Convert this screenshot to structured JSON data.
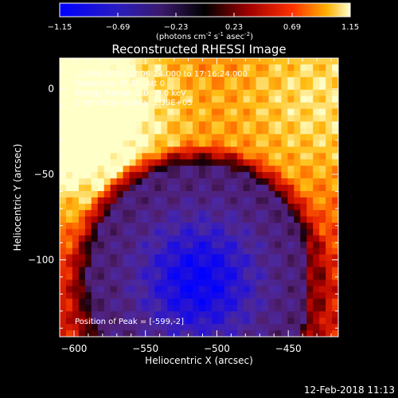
{
  "chart_data": {
    "type": "heatmap",
    "title": "Reconstructed RHESSI Image",
    "xlabel": "Heliocentric X (arcsec)",
    "ylabel": "Heliocentric Y (arcsec)",
    "xlim": [
      -610,
      -415
    ],
    "ylim": [
      -145,
      18
    ],
    "xticks": [
      -600,
      -550,
      -500,
      -450
    ],
    "yticks": [
      0,
      -50,
      -100
    ],
    "colorbar": {
      "ticks": [
        "-1.15",
        "-0.69",
        "-0.23",
        "0.23",
        "0.69",
        "1.15"
      ],
      "range": [
        -1.15,
        1.15
      ],
      "unit_label": {
        "prefix": "(photons cm",
        "sup1": "-2",
        "mid1": " s",
        "sup2": "-1",
        "mid2": " asec",
        "sup3": "-2",
        "suffix": ")"
      }
    },
    "annotations": [
      "12-Feb-2018 17:06:24.000 to 17:16:24.000",
      "Detectors: 3F 8F, Att 0",
      "Energy Range: 3.0 - 6.0 keV",
      "Clean    Total counts: 1.39E+05"
    ],
    "peak_text": "Position of Peak = [-599,-2]",
    "peak_position": [
      -599,
      -2
    ],
    "colors": [
      "#0000ff",
      "#4a2a90",
      "#000000",
      "#b00000",
      "#ff4000",
      "#ffa000",
      "#ffffc0"
    ]
  },
  "footer": {
    "timestamp": "12-Feb-2018 11:13"
  }
}
